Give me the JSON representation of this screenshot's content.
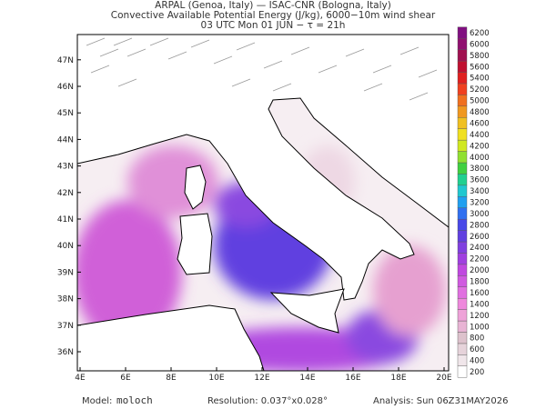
{
  "header": {
    "line1": "ARPAL (Genoa, Italy)  —  ISAC-CNR (Bologna, Italy)",
    "line2": "Convective Available Potential Energy (J/kg), 6000−10m wind shear",
    "line3": "03 UTC Mon 01 JUN  −  τ = 21h"
  },
  "map": {
    "lon_labels": [
      "4E",
      "6E",
      "8E",
      "10E",
      "12E",
      "14E",
      "16E",
      "18E",
      "20E"
    ],
    "lat_labels": [
      "36N",
      "37N",
      "38N",
      "39N",
      "40N",
      "41N",
      "42N",
      "43N",
      "44N",
      "45N",
      "46N",
      "47N"
    ]
  },
  "colorbar": {
    "levels": [
      200,
      400,
      600,
      800,
      1000,
      1200,
      1400,
      1600,
      1800,
      2000,
      2200,
      2400,
      2600,
      2800,
      3000,
      3200,
      3400,
      3600,
      3800,
      4000,
      4200,
      4400,
      4600,
      4800,
      5000,
      5200,
      5400,
      5600,
      5800,
      6000,
      6200
    ],
    "colors": [
      "#ffffff",
      "#f0e6ea",
      "#e6d3da",
      "#ddc2cc",
      "#e8b4d4",
      "#eea2d8",
      "#ee88dc",
      "#e070e0",
      "#d05ae0",
      "#c048e0",
      "#a040e0",
      "#8040e0",
      "#6040e0",
      "#4848e8",
      "#3070f0",
      "#20a0f0",
      "#20c8d0",
      "#20d090",
      "#40d040",
      "#90e030",
      "#d0e820",
      "#f0e020",
      "#f0c020",
      "#f09820",
      "#f07020",
      "#f04020",
      "#e02020",
      "#c01030",
      "#a01050",
      "#901070",
      "#801080"
    ]
  },
  "footer": {
    "model_label": "Model:",
    "model": "moloch",
    "resolution": "Resolution: 0.037°x0.028°",
    "analysis": "Analysis: Sun 06Z31MAY2026"
  }
}
